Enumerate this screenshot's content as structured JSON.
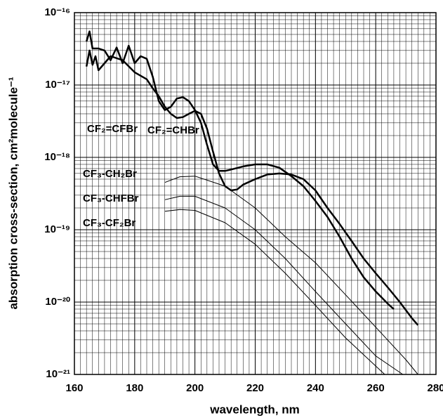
{
  "chart_data": {
    "type": "line",
    "xlabel": "wavelength, nm",
    "ylabel": "absorption cross-section, cm²molecule⁻¹",
    "log_y": true,
    "grid": true,
    "minor_grid": true,
    "xlim": [
      160,
      280
    ],
    "xticks": [
      160,
      180,
      200,
      220,
      240,
      260,
      280
    ],
    "ylim": [
      1e-21,
      1e-16
    ],
    "yticks": [
      {
        "value": 1e-21,
        "label": "10⁻²¹"
      },
      {
        "value": 1e-20,
        "label": "10⁻²⁰"
      },
      {
        "value": 1e-19,
        "label": "10⁻¹⁹"
      },
      {
        "value": 1e-18,
        "label": "10⁻¹⁸"
      },
      {
        "value": 1e-17,
        "label": "10⁻¹⁷"
      },
      {
        "value": 1e-16,
        "label": "10⁻¹⁶"
      }
    ],
    "series": [
      {
        "name": "CF₂=CHBr",
        "color": "#000000",
        "line_width": 2.5,
        "x": [
          164,
          165,
          166,
          168,
          170,
          172,
          174,
          176,
          178,
          180,
          182,
          184,
          186,
          188,
          190,
          192,
          194,
          196,
          198,
          200,
          202,
          204,
          206,
          208,
          210,
          212,
          216,
          220,
          224,
          228,
          232,
          236,
          240,
          244,
          248,
          252,
          256,
          260,
          264,
          266
        ],
        "values": [
          4e-17,
          5.5e-17,
          3.2e-17,
          3.2e-17,
          3e-17,
          2.2e-17,
          3.3e-17,
          2e-17,
          3.5e-17,
          2e-17,
          2.5e-17,
          2.3e-17,
          1.3e-17,
          6e-18,
          4.5e-18,
          5e-18,
          6.5e-18,
          6.8e-18,
          6e-18,
          4.5e-18,
          3e-18,
          1.5e-18,
          8e-19,
          6.5e-19,
          6.5e-19,
          6.8e-19,
          7.5e-19,
          8e-19,
          8e-19,
          7.2e-19,
          5.5e-19,
          4e-19,
          2.5e-19,
          1.5e-19,
          8e-20,
          4e-20,
          2.2e-20,
          1.4e-20,
          9.5e-21,
          8e-21
        ]
      },
      {
        "name": "CF₂=CFBr",
        "color": "#000000",
        "line_width": 2.5,
        "x": [
          164,
          165,
          166,
          167,
          168,
          170,
          172,
          176,
          180,
          184,
          186,
          188,
          190,
          192,
          194,
          196,
          198,
          200,
          202,
          204,
          206,
          208,
          210,
          212,
          214,
          216,
          220,
          224,
          228,
          232,
          236,
          240,
          244,
          248,
          252,
          256,
          260,
          264,
          268,
          272,
          274
        ],
        "values": [
          1.8e-17,
          3e-17,
          1.9e-17,
          2.5e-17,
          1.6e-17,
          2e-17,
          2.5e-17,
          2.2e-17,
          1.5e-17,
          1.2e-17,
          9e-18,
          7e-18,
          5e-18,
          4e-18,
          3.5e-18,
          3.6e-18,
          4e-18,
          4.4e-18,
          4e-18,
          2.5e-18,
          1.2e-18,
          6e-19,
          4e-19,
          3.5e-19,
          3.6e-19,
          4.2e-19,
          5e-19,
          5.8e-19,
          6e-19,
          5.8e-19,
          5e-19,
          3.5e-19,
          2e-19,
          1.2e-19,
          7e-20,
          4e-20,
          2.5e-20,
          1.6e-20,
          1e-20,
          6e-21,
          4.8e-21
        ]
      },
      {
        "name": "CF₃-CH₂Br",
        "color": "#000000",
        "line_width": 1,
        "x": [
          190,
          195,
          200,
          210,
          220,
          230,
          240,
          250,
          260,
          270,
          274
        ],
        "values": [
          4.5e-19,
          5.4e-19,
          5.5e-19,
          4e-19,
          2e-19,
          8e-20,
          3.5e-20,
          1.26e-20,
          4.5e-21,
          1.6e-21,
          1e-21
        ]
      },
      {
        "name": "CF₃-CHFBr",
        "color": "#000000",
        "line_width": 1,
        "x": [
          190,
          195,
          200,
          210,
          220,
          230,
          240,
          250,
          260,
          269
        ],
        "values": [
          2.6e-19,
          2.9e-19,
          2.9e-19,
          2e-19,
          1e-19,
          4e-20,
          1.4e-20,
          5e-21,
          1.8e-21,
          1e-21
        ]
      },
      {
        "name": "CF₃-CF₂Br",
        "color": "#000000",
        "line_width": 1,
        "x": [
          190,
          195,
          200,
          210,
          220,
          230,
          240,
          250,
          263
        ],
        "values": [
          1.8e-19,
          1.9e-19,
          1.85e-19,
          1.25e-19,
          6.3e-20,
          2.5e-20,
          9e-21,
          3.2e-21,
          1e-21
        ]
      }
    ]
  }
}
